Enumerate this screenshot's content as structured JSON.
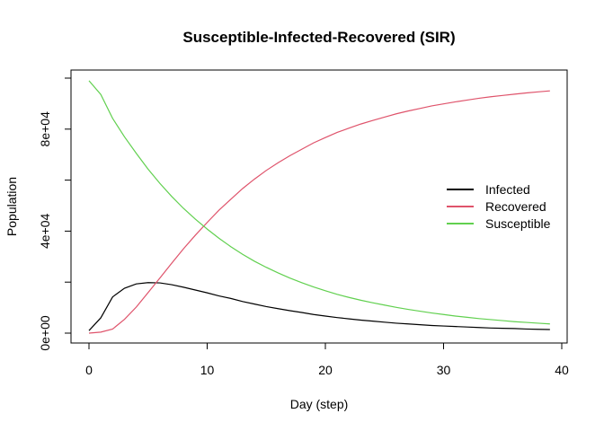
{
  "chart_data": {
    "type": "line",
    "title": "Susceptible-Infected-Recovered (SIR)",
    "xlabel": "Day (step)",
    "ylabel": "Population",
    "xlim": [
      0,
      40
    ],
    "ylim": [
      0,
      100000
    ],
    "x_ticks": [
      0,
      10,
      20,
      30,
      40
    ],
    "x_tick_labels": [
      "0",
      "10",
      "20",
      "30",
      "40"
    ],
    "y_ticks": [
      0,
      20000,
      40000,
      60000,
      80000,
      100000
    ],
    "y_tick_labels": [
      "0e+00",
      "",
      "4e+04",
      "",
      "8e+04",
      ""
    ],
    "grid": false,
    "legend_position": "right",
    "x": [
      0,
      1,
      2,
      3,
      4,
      5,
      6,
      7,
      8,
      9,
      10,
      11,
      12,
      13,
      14,
      15,
      16,
      17,
      18,
      19,
      20,
      21,
      22,
      23,
      24,
      25,
      26,
      27,
      28,
      29,
      30,
      31,
      32,
      33,
      34,
      35,
      36,
      37,
      38,
      39
    ],
    "series": [
      {
        "name": "Infected",
        "color": "#000000",
        "values": [
          1000,
          6000,
          14200,
          17600,
          19300,
          19800,
          19700,
          19000,
          18000,
          16900,
          15800,
          14600,
          13600,
          12400,
          11400,
          10400,
          9600,
          8800,
          8100,
          7300,
          6700,
          6100,
          5600,
          5100,
          4700,
          4300,
          3900,
          3600,
          3300,
          3000,
          2800,
          2600,
          2400,
          2200,
          2000,
          1900,
          1800,
          1600,
          1500,
          1400
        ]
      },
      {
        "name": "Recovered",
        "color": "#DF536B",
        "values": [
          0,
          400,
          1600,
          5400,
          10200,
          15900,
          21600,
          27400,
          33100,
          38400,
          43400,
          48200,
          52500,
          56700,
          60400,
          63800,
          66800,
          69600,
          72100,
          74600,
          76700,
          78700,
          80400,
          82000,
          83400,
          84700,
          86000,
          87100,
          88100,
          89100,
          89900,
          90700,
          91400,
          92100,
          92700,
          93200,
          93700,
          94200,
          94600,
          95000
        ]
      },
      {
        "name": "Susceptible",
        "color": "#61D04F",
        "values": [
          99000,
          93600,
          84200,
          77000,
          70500,
          64300,
          58700,
          53600,
          48900,
          44700,
          40800,
          37200,
          33900,
          30900,
          28200,
          25800,
          23600,
          21600,
          19800,
          18100,
          16600,
          15200,
          14000,
          12900,
          11900,
          11000,
          10100,
          9300,
          8600,
          7900,
          7300,
          6700,
          6200,
          5700,
          5300,
          4900,
          4500,
          4200,
          3900,
          3600
        ]
      }
    ]
  }
}
